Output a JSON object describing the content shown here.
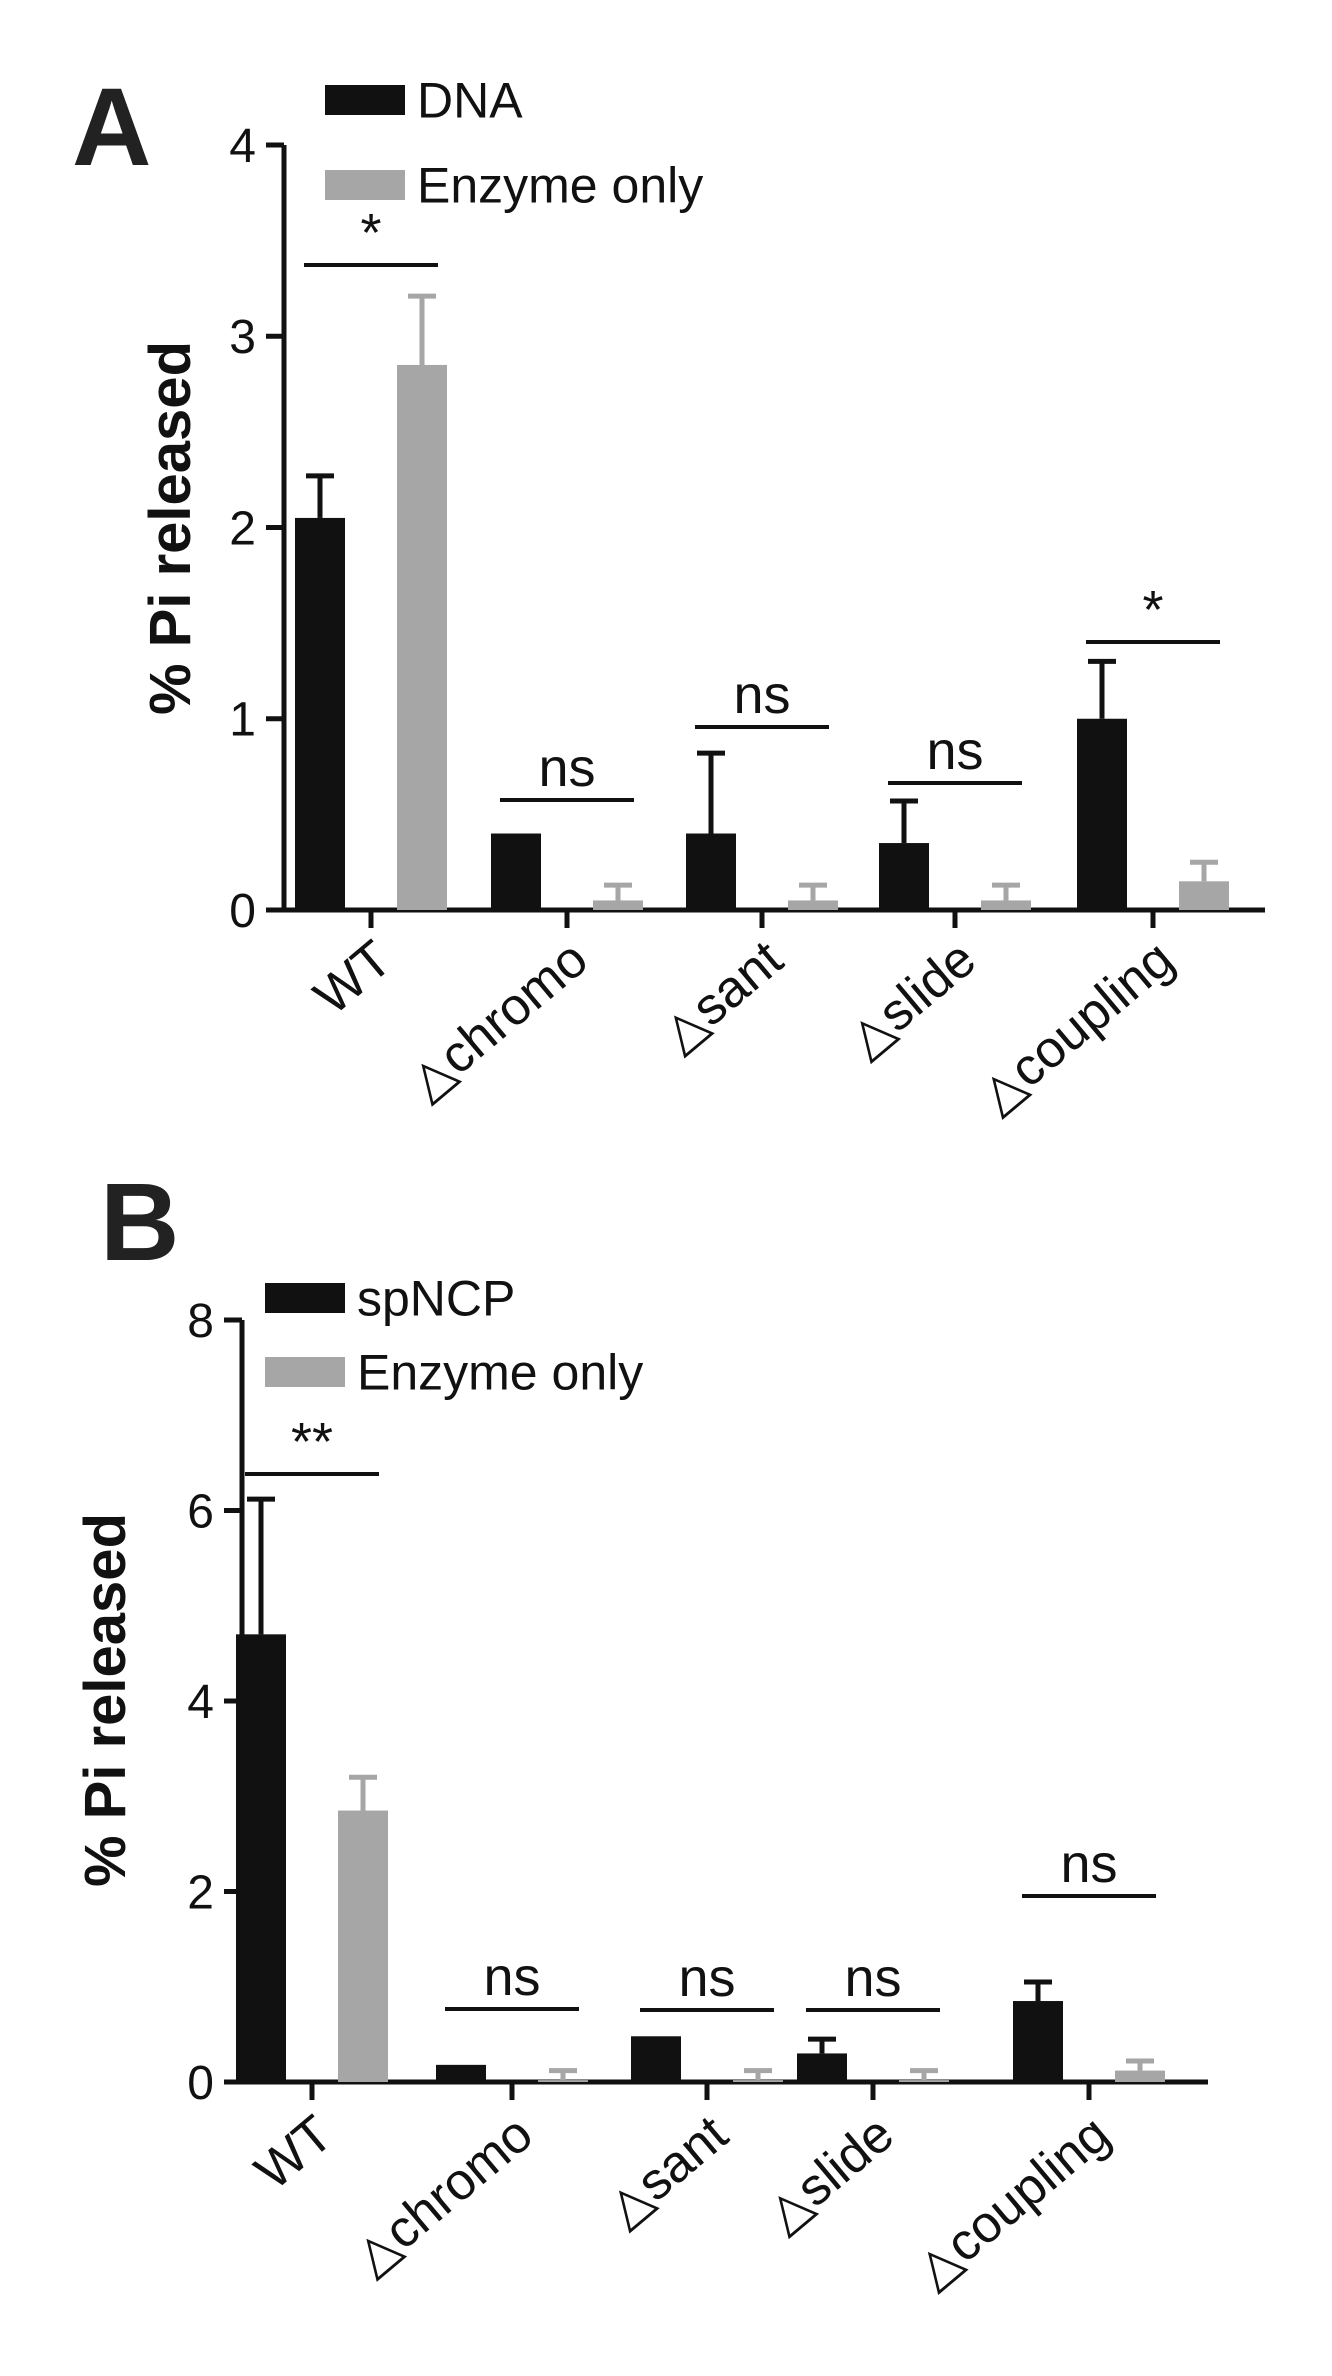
{
  "chart_data": [
    {
      "panel": "A",
      "type": "bar",
      "ylabel": "% Pi released",
      "ylim": [
        0,
        4
      ],
      "yticks": [
        "0",
        "1",
        "2",
        "3",
        "4"
      ],
      "categories": [
        "WT",
        "△chromo",
        "△sant",
        "△slide",
        "△coupling"
      ],
      "series": [
        {
          "name": "DNA",
          "color": "#111111",
          "values": [
            2.05,
            0.4,
            0.4,
            0.35,
            1.0
          ],
          "errors": [
            0.22,
            0.0,
            0.42,
            0.22,
            0.3
          ]
        },
        {
          "name": "Enzyme only",
          "color": "#a6a6a6",
          "values": [
            2.85,
            0.05,
            0.05,
            0.05,
            0.15
          ],
          "errors": [
            0.36,
            0.08,
            0.08,
            0.08,
            0.1
          ]
        }
      ],
      "significance": [
        "*",
        "ns",
        "ns",
        "ns",
        "*"
      ],
      "legend": "top-left",
      "grid": false
    },
    {
      "panel": "B",
      "type": "bar",
      "ylabel": "% Pi released",
      "ylim": [
        0,
        8
      ],
      "yticks": [
        "0",
        "2",
        "4",
        "6",
        "8"
      ],
      "categories": [
        "WT",
        "△chromo",
        "△sant",
        "△slide",
        "△coupling"
      ],
      "series": [
        {
          "name": "spNCP",
          "color": "#111111",
          "values": [
            4.7,
            0.18,
            0.48,
            0.3,
            0.85
          ],
          "errors": [
            1.42,
            0.0,
            0.0,
            0.15,
            0.2
          ]
        },
        {
          "name": "Enzyme only",
          "color": "#a6a6a6",
          "values": [
            2.85,
            0.02,
            0.02,
            0.02,
            0.12
          ],
          "errors": [
            0.35,
            0.1,
            0.1,
            0.1,
            0.1
          ]
        }
      ],
      "significance": [
        "**",
        "ns",
        "ns",
        "ns",
        "ns"
      ],
      "legend": "top-left",
      "grid": false
    }
  ]
}
